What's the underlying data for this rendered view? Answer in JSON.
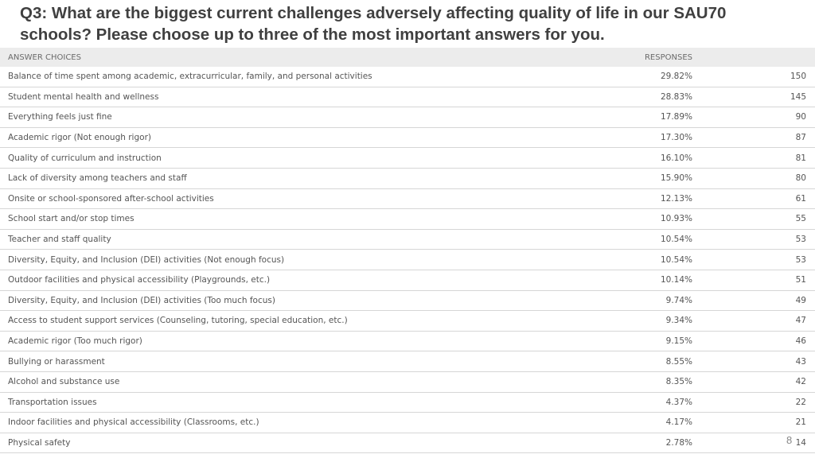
{
  "title": "Q3: What are the biggest current challenges adversely affecting quality of life in our SAU70 schools? Please choose up to three of the most important answers for you.",
  "table": {
    "headers": {
      "answer": "ANSWER CHOICES",
      "responses": "RESPONSES"
    },
    "rows": [
      {
        "answer": "Balance of time spent among academic, extracurricular, family, and personal activities",
        "percent": "29.82%",
        "count": "150"
      },
      {
        "answer": "Student mental health and wellness",
        "percent": "28.83%",
        "count": "145"
      },
      {
        "answer": "Everything feels just fine",
        "percent": "17.89%",
        "count": "90"
      },
      {
        "answer": "Academic rigor (Not enough rigor)",
        "percent": "17.30%",
        "count": "87"
      },
      {
        "answer": "Quality of curriculum and instruction",
        "percent": "16.10%",
        "count": "81"
      },
      {
        "answer": "Lack of diversity among teachers and staff",
        "percent": "15.90%",
        "count": "80"
      },
      {
        "answer": "Onsite or school-sponsored after-school activities",
        "percent": "12.13%",
        "count": "61"
      },
      {
        "answer": "School start and/or stop times",
        "percent": "10.93%",
        "count": "55"
      },
      {
        "answer": "Teacher and staff quality",
        "percent": "10.54%",
        "count": "53"
      },
      {
        "answer": "Diversity, Equity, and Inclusion (DEI) activities (Not enough focus)",
        "percent": "10.54%",
        "count": "53"
      },
      {
        "answer": "Outdoor facilities and physical accessibility (Playgrounds, etc.)",
        "percent": "10.14%",
        "count": "51"
      },
      {
        "answer": "Diversity, Equity, and Inclusion (DEI) activities (Too much focus)",
        "percent": "9.74%",
        "count": "49"
      },
      {
        "answer": "Access to student support services (Counseling, tutoring, special education, etc.)",
        "percent": "9.34%",
        "count": "47"
      },
      {
        "answer": "Academic rigor (Too much rigor)",
        "percent": "9.15%",
        "count": "46"
      },
      {
        "answer": "Bullying or harassment",
        "percent": "8.55%",
        "count": "43"
      },
      {
        "answer": "Alcohol and substance use",
        "percent": "8.35%",
        "count": "42"
      },
      {
        "answer": "Transportation issues",
        "percent": "4.37%",
        "count": "22"
      },
      {
        "answer": "Indoor facilities and physical accessibility (Classrooms, etc.)",
        "percent": "4.17%",
        "count": "21"
      },
      {
        "answer": "Physical safety",
        "percent": "2.78%",
        "count": "14"
      }
    ]
  },
  "page_number": "8"
}
